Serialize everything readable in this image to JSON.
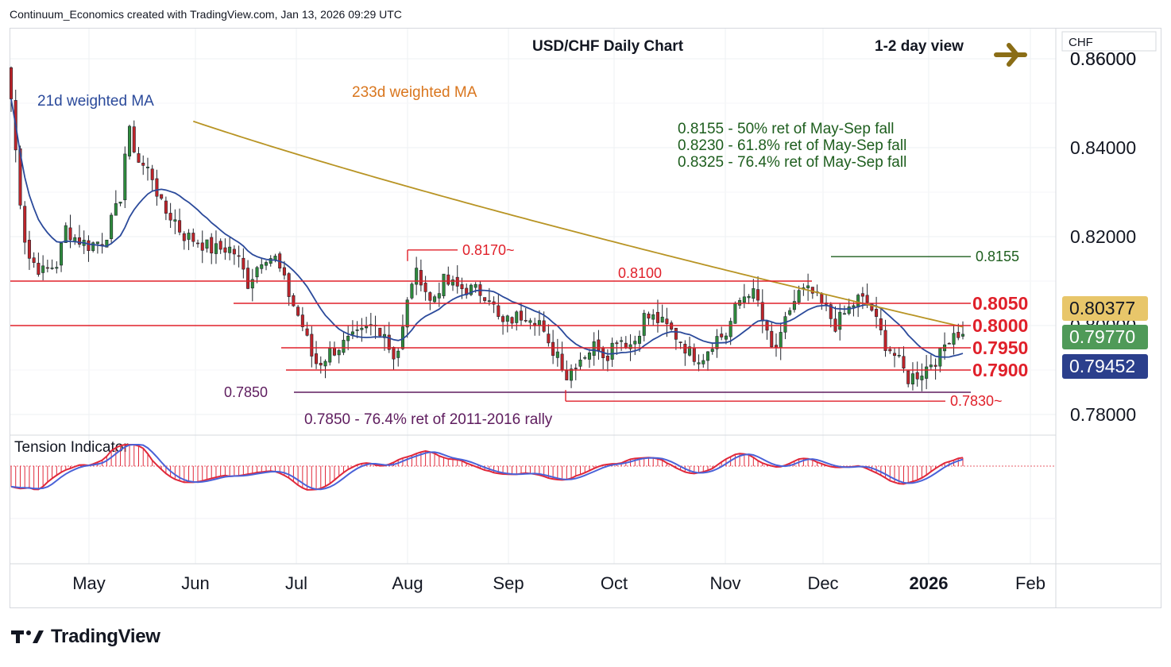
{
  "header": {
    "attribution": "Continuum_Economics created with TradingView.com, Jan 13, 2026 09:29 UTC"
  },
  "branding": {
    "logo_text": "TradingView"
  },
  "chart_data": {
    "type": "candlestick",
    "title": "USD/CHF Daily Chart",
    "view_label": "1-2 day view",
    "view_arrow": "right",
    "axis_currency": "CHF",
    "y_ticks": [
      "0.78000",
      "0.80000",
      "0.82000",
      "0.84000",
      "0.86000"
    ],
    "ylim": [
      0.7765,
      0.8575
    ],
    "x_ticks": [
      "May",
      "Jun",
      "Jul",
      "Aug",
      "Sep",
      "Oct",
      "Nov",
      "Dec",
      "2026",
      "Feb"
    ],
    "grid": true,
    "ma_labels": {
      "short": "21d weighted MA",
      "long": "233d weighted MA"
    },
    "notes": [
      "0.8155 - 50% ret of May-Sep fall",
      "0.8230 - 61.8% ret of May-Sep fall",
      "0.8325 - 76.4% ret of May-Sep fall"
    ],
    "bottom_note": "0.7850 - 76.4% ret of 2011-2016 rally",
    "levels": [
      {
        "label": "0.8170~",
        "value": 0.817,
        "color": "#e0202a"
      },
      {
        "label": "0.8155",
        "value": 0.8155,
        "color": "#1e5e1e"
      },
      {
        "label": "0.8100",
        "value": 0.81,
        "color": "#e0202a"
      },
      {
        "label": "0.8050",
        "value": 0.805,
        "color": "#e0202a"
      },
      {
        "label": "0.8000",
        "value": 0.8,
        "color": "#e0202a"
      },
      {
        "label": "0.7950",
        "value": 0.795,
        "color": "#e0202a"
      },
      {
        "label": "0.7900",
        "value": 0.79,
        "color": "#e0202a"
      },
      {
        "label": "0.7850",
        "value": 0.785,
        "color": "#5e1c5e"
      },
      {
        "label": "0.7830~",
        "value": 0.783,
        "color": "#e0202a"
      }
    ],
    "price_tags": [
      {
        "value": "0.80377",
        "bg": "#e8c66a",
        "fg": "#131722"
      },
      {
        "value": "0.79770",
        "bg": "#4f9a58",
        "fg": "#ffffff"
      },
      {
        "value": "0.79452",
        "bg": "#2b3f8c",
        "fg": "#ffffff"
      }
    ],
    "tension_indicator": {
      "label": "Tension Indicator"
    },
    "colors": {
      "up": "#2e8b3c",
      "down": "#c0242a",
      "ma21": "#2b4a9b",
      "ma233": "#b89424",
      "tension_fast": "#e0283a",
      "tension_slow": "#4a62d8"
    }
  }
}
